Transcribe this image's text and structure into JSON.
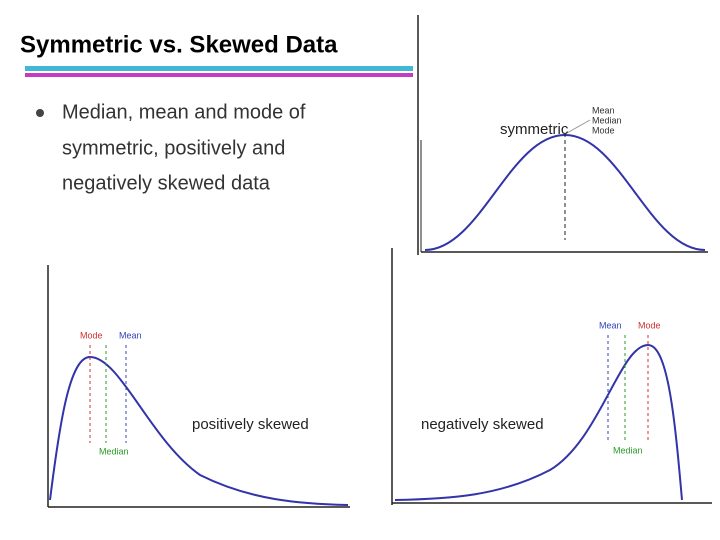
{
  "header": {
    "title": "Symmetric vs. Skewed Data"
  },
  "bullet": {
    "lines": [
      "Median, mean and mode of",
      "symmetric, positively and",
      "negatively skewed data"
    ]
  },
  "diagrams": [
    {
      "caption": "symmetric",
      "labels": [
        "Mean",
        "Median",
        "Mode"
      ]
    },
    {
      "caption": "positively skewed",
      "labels": [
        "Mode",
        "Mean",
        "Median"
      ]
    },
    {
      "caption": "negatively skewed",
      "labels": [
        "Mean",
        "Mode",
        "Median"
      ]
    }
  ]
}
